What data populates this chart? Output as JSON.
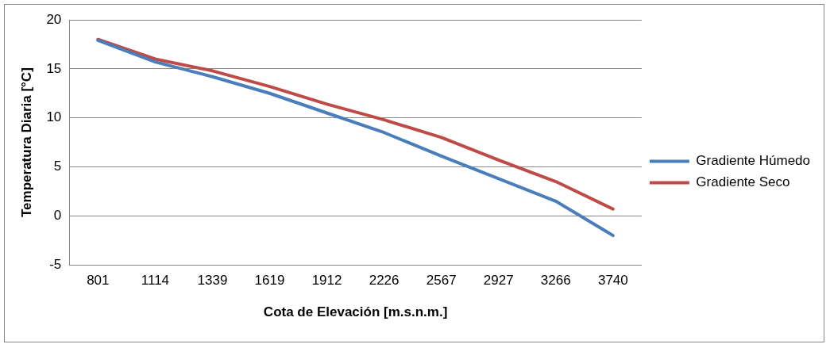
{
  "chart_data": {
    "type": "line",
    "xlabel": "Cota de Elevación [m.s.n.m.]",
    "ylabel": "Temperatura Diaria [°C]",
    "categories": [
      "801",
      "1114",
      "1339",
      "1619",
      "1912",
      "2226",
      "2567",
      "2927",
      "3266",
      "3740"
    ],
    "series": [
      {
        "name": "Gradiente Húmedo",
        "color": "#4a7ebb",
        "values": [
          17.9,
          15.7,
          14.2,
          12.5,
          10.5,
          8.5,
          6.1,
          3.8,
          1.5,
          -2.0
        ]
      },
      {
        "name": "Gradiente Seco",
        "color": "#be4b48",
        "values": [
          18.0,
          16.0,
          14.8,
          13.2,
          11.4,
          9.8,
          8.0,
          5.7,
          3.5,
          0.7
        ]
      }
    ],
    "ylim": [
      -5,
      20
    ],
    "yticks": [
      -5,
      0,
      5,
      10,
      15,
      20
    ],
    "grid": "y",
    "legend": "right",
    "marker": "none",
    "line_style": "solid"
  }
}
